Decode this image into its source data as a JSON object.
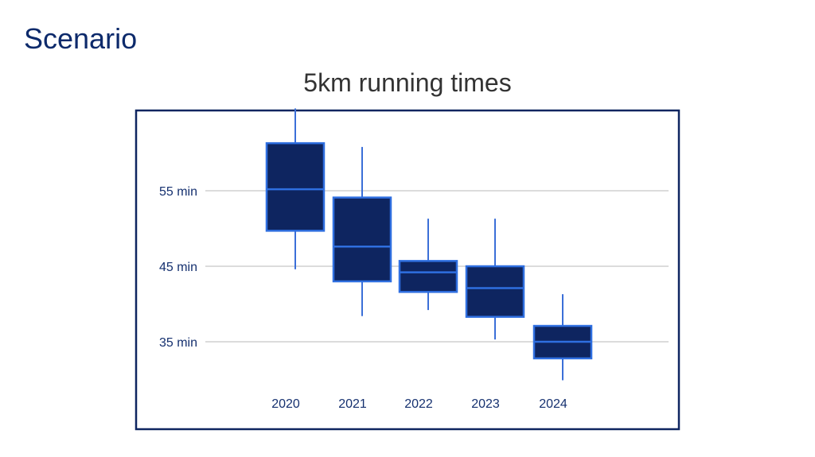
{
  "slide": {
    "title": "Scenario"
  },
  "colors": {
    "title": "#0d2a6b",
    "box_fill": "#0e2560",
    "box_stroke": "#2f6fe0",
    "whisker": "#3b6fd8",
    "frame": "#0e2560",
    "grid": "#c8c8c8",
    "label": "#15306f"
  },
  "chart_data": {
    "type": "boxplot",
    "title": "5km running times",
    "xlabel": "",
    "ylabel": "",
    "unit": "min",
    "categories": [
      "2020",
      "2021",
      "2022",
      "2023",
      "2024"
    ],
    "boxes": [
      {
        "category": "2020",
        "min": 44.6,
        "q1": 49.7,
        "median": 55.2,
        "q3": 61.3,
        "max": 65.9
      },
      {
        "category": "2021",
        "min": 38.4,
        "q1": 43.0,
        "median": 47.6,
        "q3": 54.1,
        "max": 60.8
      },
      {
        "category": "2022",
        "min": 39.2,
        "q1": 41.6,
        "median": 44.2,
        "q3": 45.7,
        "max": 51.3
      },
      {
        "category": "2023",
        "min": 35.3,
        "q1": 38.3,
        "median": 42.1,
        "q3": 45.0,
        "max": 51.3
      },
      {
        "category": "2024",
        "min": 29.9,
        "q1": 32.8,
        "median": 35.0,
        "q3": 37.1,
        "max": 41.3
      }
    ],
    "yticks": [
      {
        "value": 35,
        "label": "35 min"
      },
      {
        "value": 45,
        "label": "45 min"
      },
      {
        "value": 55,
        "label": "55 min"
      }
    ],
    "grid": true,
    "legend": "none"
  }
}
